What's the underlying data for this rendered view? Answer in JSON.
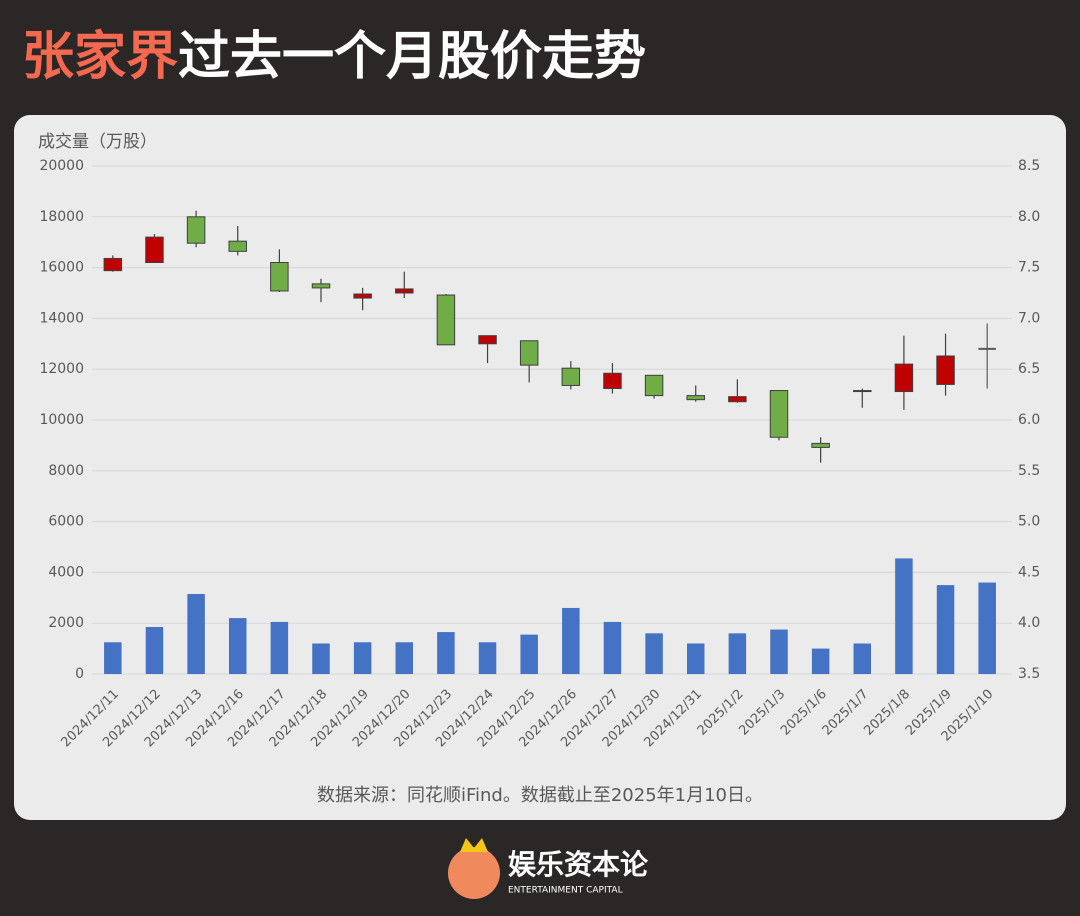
{
  "title_highlight": "张家界",
  "title": "过去一个月股价走势",
  "chart_data": {
    "type": "candlestick",
    "y_axis_label": "成交量（万股）",
    "source": "数据来源：同花顺iFind。数据截止至2025年1月10日。",
    "categories": [
      "2024/12/11",
      "2024/12/12",
      "2024/12/13",
      "2024/12/16",
      "2024/12/17",
      "2024/12/18",
      "2024/12/19",
      "2024/12/20",
      "2024/12/23",
      "2024/12/24",
      "2024/12/25",
      "2024/12/26",
      "2024/12/27",
      "2024/12/30",
      "2024/12/31",
      "2025/1/2",
      "2025/1/3",
      "2025/1/6",
      "2025/1/7",
      "2025/1/8",
      "2025/1/9",
      "2025/1/10"
    ],
    "volume": {
      "color": "#4472c4",
      "values": [
        1250,
        1850,
        3150,
        2200,
        2050,
        1200,
        1250,
        1250,
        1650,
        1250,
        1550,
        2600,
        2050,
        1600,
        1200,
        1600,
        1750,
        1000,
        1200,
        4550,
        3500,
        3600
      ]
    },
    "ohlc": {
      "axis": "y2",
      "up_color": "#c00000",
      "down_color": "#70ad47",
      "flat_color": "#595959",
      "open": [
        7.47,
        7.55,
        8.0,
        7.76,
        7.55,
        7.34,
        7.2,
        7.25,
        7.23,
        6.75,
        6.78,
        6.51,
        6.31,
        6.44,
        6.24,
        6.18,
        6.29,
        5.77,
        6.28,
        6.28,
        6.35,
        6.7
      ],
      "high": [
        7.62,
        7.83,
        8.06,
        7.91,
        7.68,
        7.39,
        7.3,
        7.46,
        7.24,
        6.83,
        6.78,
        6.58,
        6.56,
        6.44,
        6.34,
        6.4,
        6.29,
        5.83,
        6.31,
        6.83,
        6.85,
        6.95
      ],
      "low": [
        7.46,
        7.55,
        7.7,
        7.62,
        7.26,
        7.16,
        7.08,
        7.2,
        6.74,
        6.56,
        6.37,
        6.3,
        6.26,
        6.21,
        6.18,
        6.17,
        5.8,
        5.58,
        6.12,
        6.1,
        6.24,
        6.31
      ],
      "close": [
        7.59,
        7.8,
        7.74,
        7.66,
        7.27,
        7.3,
        7.24,
        7.29,
        6.74,
        6.83,
        6.54,
        6.34,
        6.46,
        6.24,
        6.2,
        6.23,
        5.83,
        5.73,
        6.29,
        6.55,
        6.63,
        6.7
      ]
    },
    "ylim": [
      0,
      20000
    ],
    "yticks": [
      0,
      2000,
      4000,
      6000,
      8000,
      10000,
      12000,
      14000,
      16000,
      18000,
      20000
    ],
    "y2lim": [
      3.5,
      8.5
    ],
    "y2ticks": [
      {
        "value": 3.5,
        "label": "3.5"
      },
      {
        "value": 4,
        "label": "4.0"
      },
      {
        "value": 4.5,
        "label": "4.5"
      },
      {
        "value": 5,
        "label": "5.0"
      },
      {
        "value": 5.5,
        "label": "5.5"
      },
      {
        "value": 6,
        "label": "6.0"
      },
      {
        "value": 6.5,
        "label": "6.5"
      },
      {
        "value": 7,
        "label": "7.0"
      },
      {
        "value": 7.5,
        "label": "7.5"
      },
      {
        "value": 8,
        "label": "8.0"
      },
      {
        "value": 8.5,
        "label": "8.5"
      }
    ],
    "grid": true
  },
  "footer": {
    "brand": "娱乐资本论",
    "brand_en": "ENTERTAINMENT CAPITAL"
  }
}
